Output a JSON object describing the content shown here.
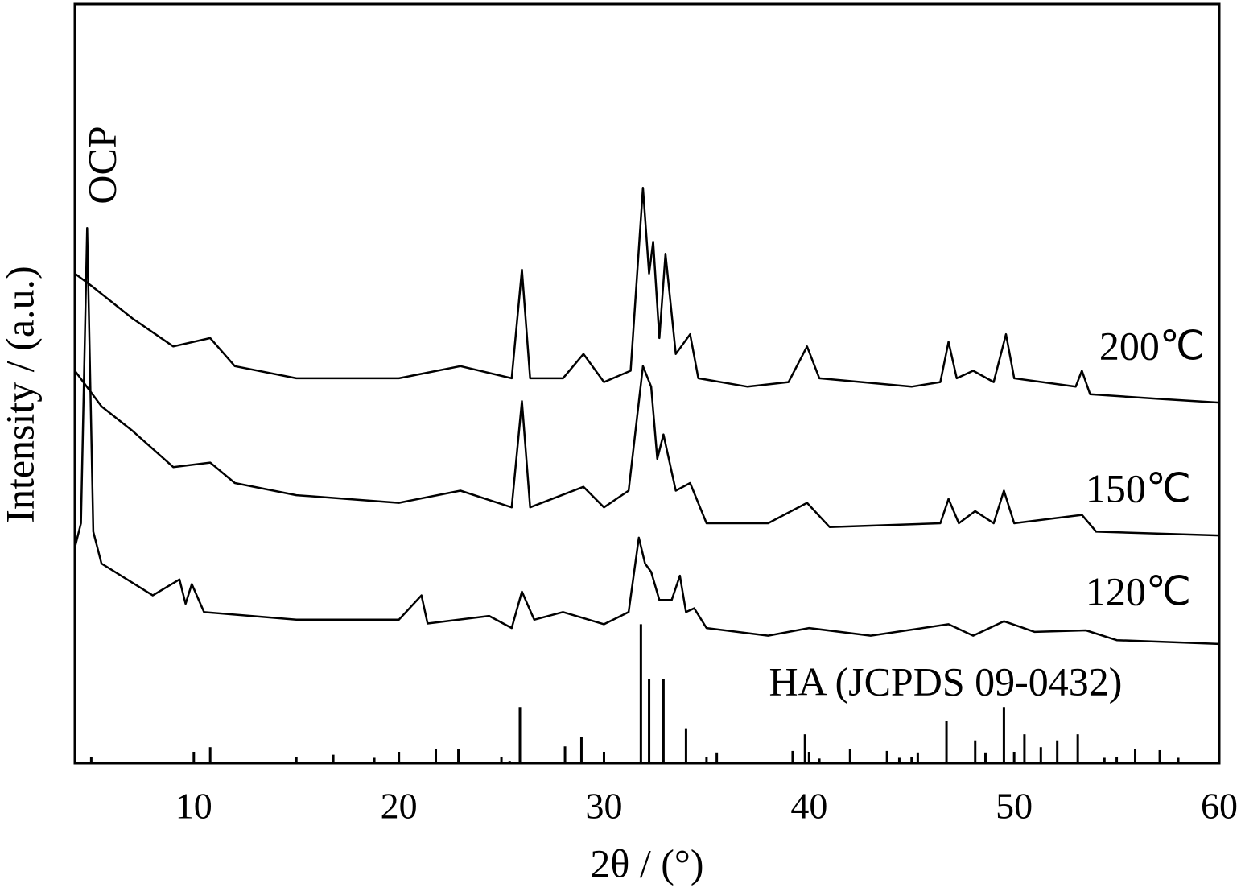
{
  "chart_data": {
    "type": "line",
    "xlabel": "2θ / (°)",
    "ylabel": "Intensity / (a.u.)",
    "xlim": [
      4.2,
      60
    ],
    "xticks": [
      10,
      20,
      30,
      40,
      50,
      60
    ],
    "xminor_ticks": [
      5,
      15,
      25,
      35,
      45,
      55
    ],
    "ylim": [
      0,
      100
    ],
    "annotations": [
      "OCP"
    ],
    "series": [
      {
        "name": "200℃",
        "color": "#000000",
        "x": [
          4.2,
          5,
          7,
          9,
          10.8,
          12,
          15,
          20,
          23,
          25.5,
          26,
          26.4,
          28,
          29,
          30,
          31.3,
          31.9,
          32.2,
          32.4,
          32.7,
          33,
          33.5,
          34.2,
          34.6,
          37,
          39,
          39.9,
          40.5,
          45,
          46.4,
          46.8,
          47.2,
          48,
          49,
          49.6,
          50,
          53,
          53.3,
          53.7,
          57,
          60
        ],
        "values": [
          64.5,
          62.9,
          58.6,
          54.9,
          56.0,
          52.3,
          50.7,
          50.7,
          52.3,
          50.7,
          65.0,
          50.7,
          50.7,
          53.9,
          50.2,
          51.7,
          75.8,
          64.5,
          68.7,
          56.0,
          67.1,
          53.9,
          56.5,
          50.7,
          49.6,
          50.2,
          54.9,
          50.7,
          49.6,
          50.2,
          55.5,
          50.7,
          51.7,
          50.2,
          56.5,
          50.7,
          49.6,
          51.7,
          48.6,
          48.0,
          47.5
        ]
      },
      {
        "name": "150℃",
        "color": "#000000",
        "x": [
          4.2,
          5.5,
          7,
          9,
          10.8,
          12,
          15,
          20,
          23,
          25.5,
          26,
          26.4,
          29,
          30,
          31.2,
          31.9,
          32.3,
          32.6,
          32.9,
          33.5,
          34.2,
          35,
          38,
          39.9,
          41,
          46.4,
          46.8,
          47.3,
          48.1,
          49,
          49.5,
          50,
          53.3,
          54,
          60
        ],
        "values": [
          51.7,
          47.0,
          43.8,
          39.0,
          39.6,
          36.9,
          35.3,
          34.3,
          35.9,
          33.7,
          47.7,
          33.7,
          36.4,
          33.7,
          35.9,
          52.3,
          49.6,
          40.1,
          43.3,
          35.9,
          36.9,
          31.6,
          31.6,
          34.3,
          31.1,
          31.6,
          34.8,
          31.6,
          33.2,
          31.6,
          35.9,
          31.6,
          32.7,
          30.5,
          30.0
        ]
      },
      {
        "name": "120℃",
        "color": "#000000",
        "x": [
          4.2,
          4.5,
          4.8,
          5.1,
          5.5,
          8,
          9.3,
          9.6,
          9.9,
          10.5,
          15,
          20,
          21.1,
          21.4,
          24.4,
          25.5,
          26,
          26.6,
          28,
          30,
          31.2,
          31.7,
          32,
          32.3,
          32.7,
          33.3,
          33.7,
          34,
          34.4,
          35,
          38,
          40,
          43,
          46.8,
          48,
          49.5,
          51,
          53.5,
          55,
          60
        ],
        "values": [
          28.4,
          31.6,
          70.5,
          30.5,
          26.3,
          22.1,
          24.2,
          21.0,
          23.6,
          19.9,
          18.9,
          18.9,
          22.1,
          18.4,
          19.4,
          17.8,
          22.6,
          18.9,
          19.9,
          18.3,
          19.9,
          29.7,
          26.3,
          25.2,
          21.5,
          21.5,
          24.7,
          19.9,
          20.4,
          17.8,
          16.8,
          17.8,
          16.8,
          18.3,
          16.8,
          18.7,
          17.3,
          17.5,
          16.2,
          15.7
        ]
      }
    ],
    "reference": {
      "name": "HA (JCPDS 09-0432)",
      "color": "#000000",
      "x": [
        10.8,
        16.8,
        18.8,
        21.8,
        22.9,
        25.4,
        25.9,
        28.1,
        28.9,
        31.8,
        32.2,
        32.9,
        34.0,
        35.5,
        39.2,
        39.8,
        40.5,
        42.0,
        43.8,
        44.4,
        45.3,
        46.7,
        48.1,
        48.6,
        49.5,
        50.5,
        51.3,
        52.1,
        53.1,
        54.4,
        55.9,
        57.1,
        58.0
      ],
      "values": [
        2.1,
        1.1,
        0.8,
        1.9,
        1.9,
        0.3,
        7.4,
        2.2,
        3.4,
        18.3,
        11.1,
        11.1,
        4.6,
        1.4,
        1.6,
        3.8,
        0.6,
        1.9,
        1.6,
        0.8,
        1.4,
        5.6,
        3.0,
        1.4,
        7.4,
        3.8,
        2.1,
        3.0,
        3.8,
        0.8,
        1.9,
        1.7,
        0.8
      ]
    }
  }
}
